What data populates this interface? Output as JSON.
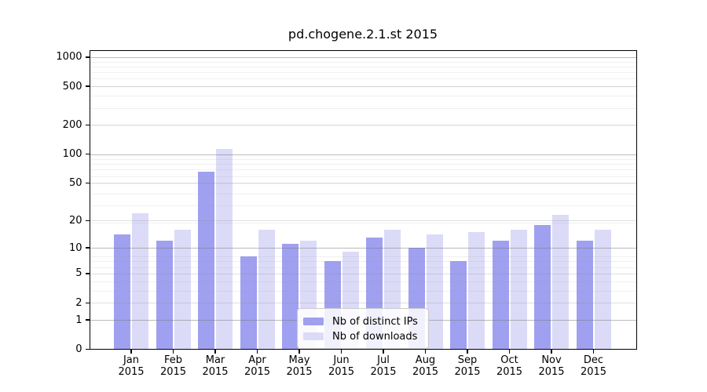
{
  "chart_data": {
    "type": "bar",
    "title": "pd.chogene.2.1.st 2015",
    "categories": [
      "Jan",
      "Feb",
      "Mar",
      "Apr",
      "May",
      "Jun",
      "Jul",
      "Aug",
      "Sep",
      "Oct",
      "Nov",
      "Dec"
    ],
    "category_year": "2015",
    "series": [
      {
        "name": "Nb of distinct IPs",
        "color": "#a0a0f0",
        "values": [
          14,
          12,
          66,
          8,
          11,
          7,
          13,
          10,
          7,
          12,
          18,
          12
        ]
      },
      {
        "name": "Nb of downloads",
        "color": "#dbdbf8",
        "values": [
          24,
          16,
          113,
          16,
          12,
          9,
          16,
          14,
          15,
          16,
          23,
          16
        ]
      }
    ],
    "y_axis": {
      "scale": "log10(value+1)",
      "tick_values": [
        1000,
        500,
        200,
        100,
        50,
        20,
        10,
        5,
        2,
        1,
        0
      ],
      "major_grid_values": [
        1,
        10,
        100,
        1000
      ],
      "mid_grid_values": [
        2,
        5,
        20,
        50,
        200,
        500
      ],
      "ylim": [
        0,
        1180
      ]
    },
    "x_axis": {
      "tick_label_line2": "2015"
    },
    "legend": {
      "position": "lower center",
      "entries_from_series": true
    },
    "grid": true,
    "colors": {
      "background": "#ffffff",
      "spine": "#000000",
      "major_grid": "#c6c6c6",
      "minor_grid": "#efefef"
    }
  }
}
